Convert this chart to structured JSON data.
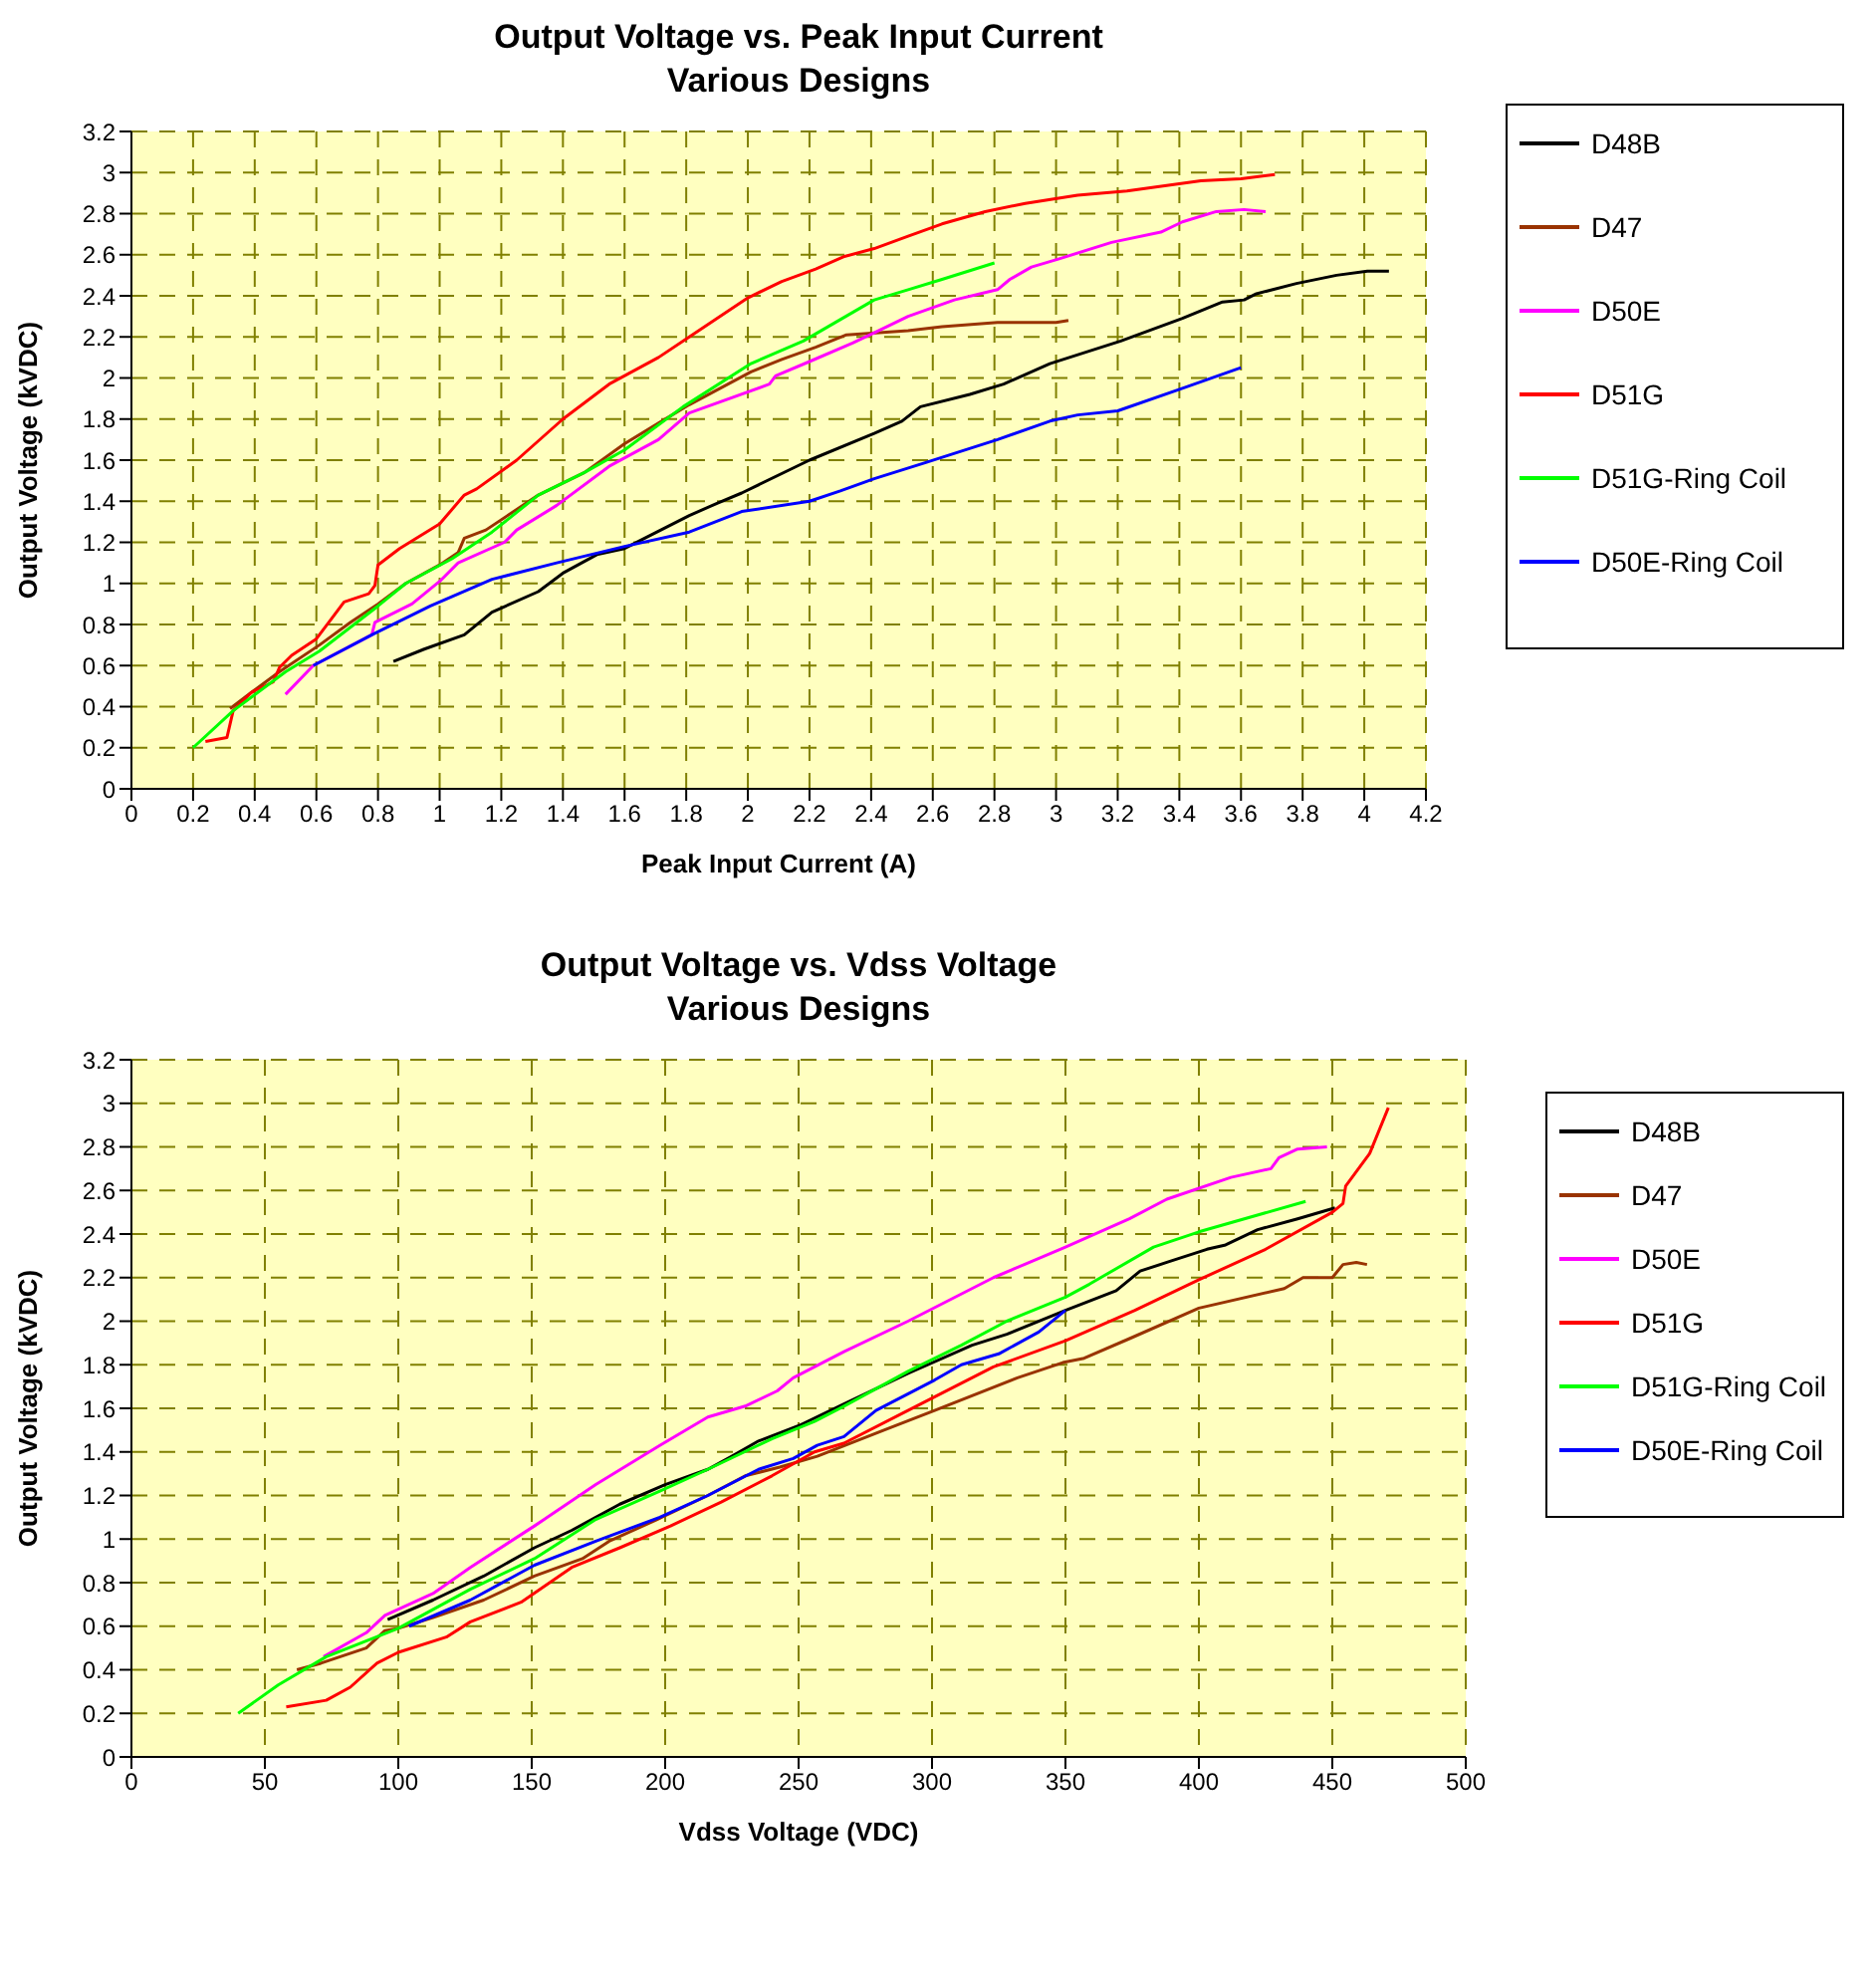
{
  "chart_data": [
    {
      "type": "line",
      "title": "Output Voltage vs. Peak Input Current",
      "subtitle": "Various Designs",
      "xlabel": "Peak Input Current (A)",
      "ylabel": "Output Voltage (kVDC)",
      "xlim": [
        0,
        4.2
      ],
      "xticks": [
        0,
        0.2,
        0.4,
        0.6,
        0.8,
        1,
        1.2,
        1.4,
        1.6,
        1.8,
        2,
        2.2,
        2.4,
        2.6,
        2.8,
        3,
        3.2,
        3.4,
        3.6,
        3.8,
        4,
        4.2
      ],
      "ylim": [
        0,
        3.2
      ],
      "yticks": [
        0,
        0.2,
        0.4,
        0.6,
        0.8,
        1,
        1.2,
        1.4,
        1.6,
        1.8,
        2,
        2.2,
        2.4,
        2.6,
        2.8,
        3,
        3.2
      ],
      "grid": true,
      "legend": "right",
      "marker": "none",
      "line_style": "solid",
      "series": [
        {
          "name": "D48B",
          "color": "#000000",
          "x": [
            0.85,
            0.95,
            1.08,
            1.17,
            1.32,
            1.4,
            1.51,
            1.6,
            1.81,
            1.9,
            1.98,
            2.2,
            2.41,
            2.5,
            2.56,
            2.72,
            2.83,
            2.98,
            3.21,
            3.41,
            3.54,
            3.61,
            3.65,
            3.78,
            3.91,
            4.01,
            4.08
          ],
          "values": [
            0.62,
            0.68,
            0.75,
            0.86,
            0.96,
            1.05,
            1.14,
            1.17,
            1.33,
            1.39,
            1.44,
            1.6,
            1.73,
            1.79,
            1.86,
            1.92,
            1.97,
            2.07,
            2.18,
            2.29,
            2.37,
            2.38,
            2.41,
            2.46,
            2.5,
            2.52,
            2.52
          ]
        },
        {
          "name": "D47",
          "color": "#993300",
          "x": [
            0.32,
            0.39,
            0.48,
            0.61,
            0.71,
            0.8,
            0.89,
            1.0,
            1.06,
            1.08,
            1.15,
            1.32,
            1.47,
            1.6,
            1.71,
            1.81,
            2.01,
            2.11,
            2.22,
            2.32,
            2.52,
            2.63,
            2.81,
            3.0,
            3.04
          ],
          "values": [
            0.39,
            0.47,
            0.57,
            0.7,
            0.81,
            0.9,
            1.0,
            1.09,
            1.15,
            1.22,
            1.26,
            1.43,
            1.54,
            1.68,
            1.78,
            1.87,
            2.03,
            2.09,
            2.15,
            2.21,
            2.23,
            2.25,
            2.27,
            2.27,
            2.28
          ]
        },
        {
          "name": "D50E",
          "color": "#ff00ff",
          "x": [
            0.5,
            0.59,
            0.78,
            0.79,
            0.91,
            1.0,
            1.06,
            1.21,
            1.25,
            1.38,
            1.55,
            1.71,
            1.81,
            2.07,
            2.09,
            2.2,
            2.34,
            2.41,
            2.52,
            2.67,
            2.81,
            2.85,
            2.92,
            3.01,
            3.18,
            3.34,
            3.41,
            3.52,
            3.61,
            3.68
          ],
          "values": [
            0.46,
            0.6,
            0.75,
            0.81,
            0.9,
            1.01,
            1.1,
            1.2,
            1.26,
            1.38,
            1.57,
            1.7,
            1.83,
            1.97,
            2.01,
            2.08,
            2.17,
            2.22,
            2.3,
            2.38,
            2.43,
            2.48,
            2.54,
            2.58,
            2.66,
            2.71,
            2.76,
            2.81,
            2.82,
            2.81
          ]
        },
        {
          "name": "D51G",
          "color": "#ff0000",
          "x": [
            0.24,
            0.31,
            0.33,
            0.39,
            0.46,
            0.48,
            0.52,
            0.6,
            0.65,
            0.69,
            0.77,
            0.79,
            0.8,
            0.87,
            1.0,
            1.08,
            1.12,
            1.25,
            1.4,
            1.55,
            1.71,
            1.81,
            2.0,
            2.11,
            2.22,
            2.31,
            2.41,
            2.52,
            2.63,
            2.77,
            2.9,
            3.07,
            3.23,
            3.47,
            3.6,
            3.71
          ],
          "values": [
            0.23,
            0.25,
            0.38,
            0.47,
            0.52,
            0.59,
            0.65,
            0.73,
            0.83,
            0.91,
            0.95,
            0.99,
            1.09,
            1.17,
            1.29,
            1.43,
            1.46,
            1.6,
            1.8,
            1.97,
            2.1,
            2.2,
            2.39,
            2.47,
            2.53,
            2.59,
            2.63,
            2.69,
            2.75,
            2.81,
            2.85,
            2.89,
            2.91,
            2.96,
            2.97,
            2.99
          ]
        },
        {
          "name": "D51G-Ring Coil",
          "color": "#00ff00",
          "x": [
            0.2,
            0.33,
            0.5,
            0.61,
            0.8,
            0.89,
            1.04,
            1.17,
            1.32,
            1.47,
            1.6,
            1.79,
            2.01,
            2.18,
            2.41,
            2.52,
            2.63,
            2.8
          ],
          "values": [
            0.2,
            0.38,
            0.57,
            0.67,
            0.89,
            1.0,
            1.12,
            1.25,
            1.43,
            1.54,
            1.65,
            1.86,
            2.07,
            2.18,
            2.38,
            2.43,
            2.48,
            2.56
          ]
        },
        {
          "name": "D50E-Ring Coil",
          "color": "#0000ff",
          "x": [
            0.59,
            0.78,
            0.97,
            1.17,
            1.38,
            1.6,
            1.81,
            1.98,
            2.2,
            2.3,
            2.41,
            2.58,
            2.81,
            2.98,
            3.07,
            3.2,
            3.41,
            3.6
          ],
          "values": [
            0.6,
            0.75,
            0.89,
            1.02,
            1.1,
            1.18,
            1.25,
            1.35,
            1.4,
            1.45,
            1.51,
            1.59,
            1.7,
            1.79,
            1.82,
            1.84,
            1.95,
            2.05
          ]
        }
      ]
    },
    {
      "type": "line",
      "title": "Output Voltage vs. Vdss Voltage",
      "subtitle": "Various Designs",
      "xlabel": "Vdss Voltage (VDC)",
      "ylabel": "Output Voltage (kVDC)",
      "xlim": [
        0,
        500
      ],
      "xticks": [
        0,
        50,
        100,
        150,
        200,
        250,
        300,
        350,
        400,
        450,
        500
      ],
      "ylim": [
        0,
        3.2
      ],
      "yticks": [
        0,
        0.2,
        0.4,
        0.6,
        0.8,
        1,
        1.2,
        1.4,
        1.6,
        1.8,
        2,
        2.2,
        2.4,
        2.6,
        2.8,
        3,
        3.2
      ],
      "grid": true,
      "legend": "right",
      "marker": "none",
      "line_style": "solid",
      "series": [
        {
          "name": "D48B",
          "color": "#000000",
          "x": [
            96,
            113,
            132,
            151,
            165,
            183,
            200,
            216,
            225,
            235,
            250,
            267,
            291,
            315,
            328,
            350,
            369,
            378,
            388,
            403,
            410,
            422,
            437,
            451
          ],
          "values": [
            0.63,
            0.72,
            0.83,
            0.96,
            1.04,
            1.16,
            1.25,
            1.32,
            1.38,
            1.45,
            1.52,
            1.62,
            1.76,
            1.89,
            1.94,
            2.05,
            2.14,
            2.23,
            2.27,
            2.33,
            2.35,
            2.42,
            2.47,
            2.52
          ]
        },
        {
          "name": "D47",
          "color": "#993300",
          "x": [
            62,
            71,
            88,
            95,
            100,
            113,
            132,
            151,
            169,
            179,
            197,
            216,
            230,
            243,
            257,
            282,
            301,
            332,
            349,
            357,
            374,
            400,
            432,
            439,
            450,
            454,
            459,
            463
          ],
          "values": [
            0.4,
            0.43,
            0.5,
            0.58,
            0.59,
            0.64,
            0.72,
            0.83,
            0.91,
            0.99,
            1.09,
            1.2,
            1.29,
            1.33,
            1.38,
            1.5,
            1.59,
            1.74,
            1.81,
            1.83,
            1.92,
            2.06,
            2.15,
            2.2,
            2.2,
            2.26,
            2.27,
            2.26
          ]
        },
        {
          "name": "D50E",
          "color": "#ff00ff",
          "x": [
            72,
            88,
            95,
            113,
            127,
            151,
            174,
            198,
            216,
            230,
            242,
            248,
            267,
            291,
            323,
            350,
            374,
            388,
            412,
            427,
            430,
            437,
            448
          ],
          "values": [
            0.46,
            0.57,
            0.65,
            0.75,
            0.87,
            1.06,
            1.25,
            1.43,
            1.56,
            1.61,
            1.68,
            1.74,
            1.86,
            2.0,
            2.2,
            2.34,
            2.47,
            2.56,
            2.66,
            2.7,
            2.75,
            2.79,
            2.8
          ]
        },
        {
          "name": "D51G",
          "color": "#ff0000",
          "x": [
            58,
            73,
            82,
            92,
            100,
            118,
            127,
            146,
            165,
            183,
            202,
            221,
            240,
            256,
            267,
            291,
            323,
            350,
            376,
            400,
            425,
            450,
            454,
            455,
            464,
            471
          ],
          "values": [
            0.23,
            0.26,
            0.32,
            0.43,
            0.48,
            0.55,
            0.62,
            0.71,
            0.87,
            0.96,
            1.06,
            1.17,
            1.29,
            1.4,
            1.44,
            1.59,
            1.79,
            1.91,
            2.05,
            2.19,
            2.33,
            2.5,
            2.54,
            2.62,
            2.77,
            2.98
          ]
        },
        {
          "name": "D51G-Ring Coil",
          "color": "#00ff00",
          "x": [
            40,
            55,
            73,
            100,
            127,
            151,
            174,
            198,
            216,
            240,
            256,
            267,
            291,
            311,
            328,
            350,
            359,
            383,
            400,
            440
          ],
          "values": [
            0.2,
            0.33,
            0.46,
            0.59,
            0.77,
            0.91,
            1.09,
            1.22,
            1.32,
            1.46,
            1.54,
            1.61,
            1.77,
            1.89,
            2.0,
            2.11,
            2.17,
            2.34,
            2.41,
            2.55
          ]
        },
        {
          "name": "D50E-Ring Coil",
          "color": "#0000ff",
          "x": [
            104,
            127,
            151,
            174,
            198,
            216,
            235,
            248,
            257,
            267,
            279,
            301,
            311,
            325,
            340,
            350
          ],
          "values": [
            0.6,
            0.72,
            0.88,
            0.99,
            1.1,
            1.2,
            1.32,
            1.37,
            1.43,
            1.47,
            1.59,
            1.73,
            1.8,
            1.85,
            1.95,
            2.05
          ]
        }
      ]
    }
  ]
}
